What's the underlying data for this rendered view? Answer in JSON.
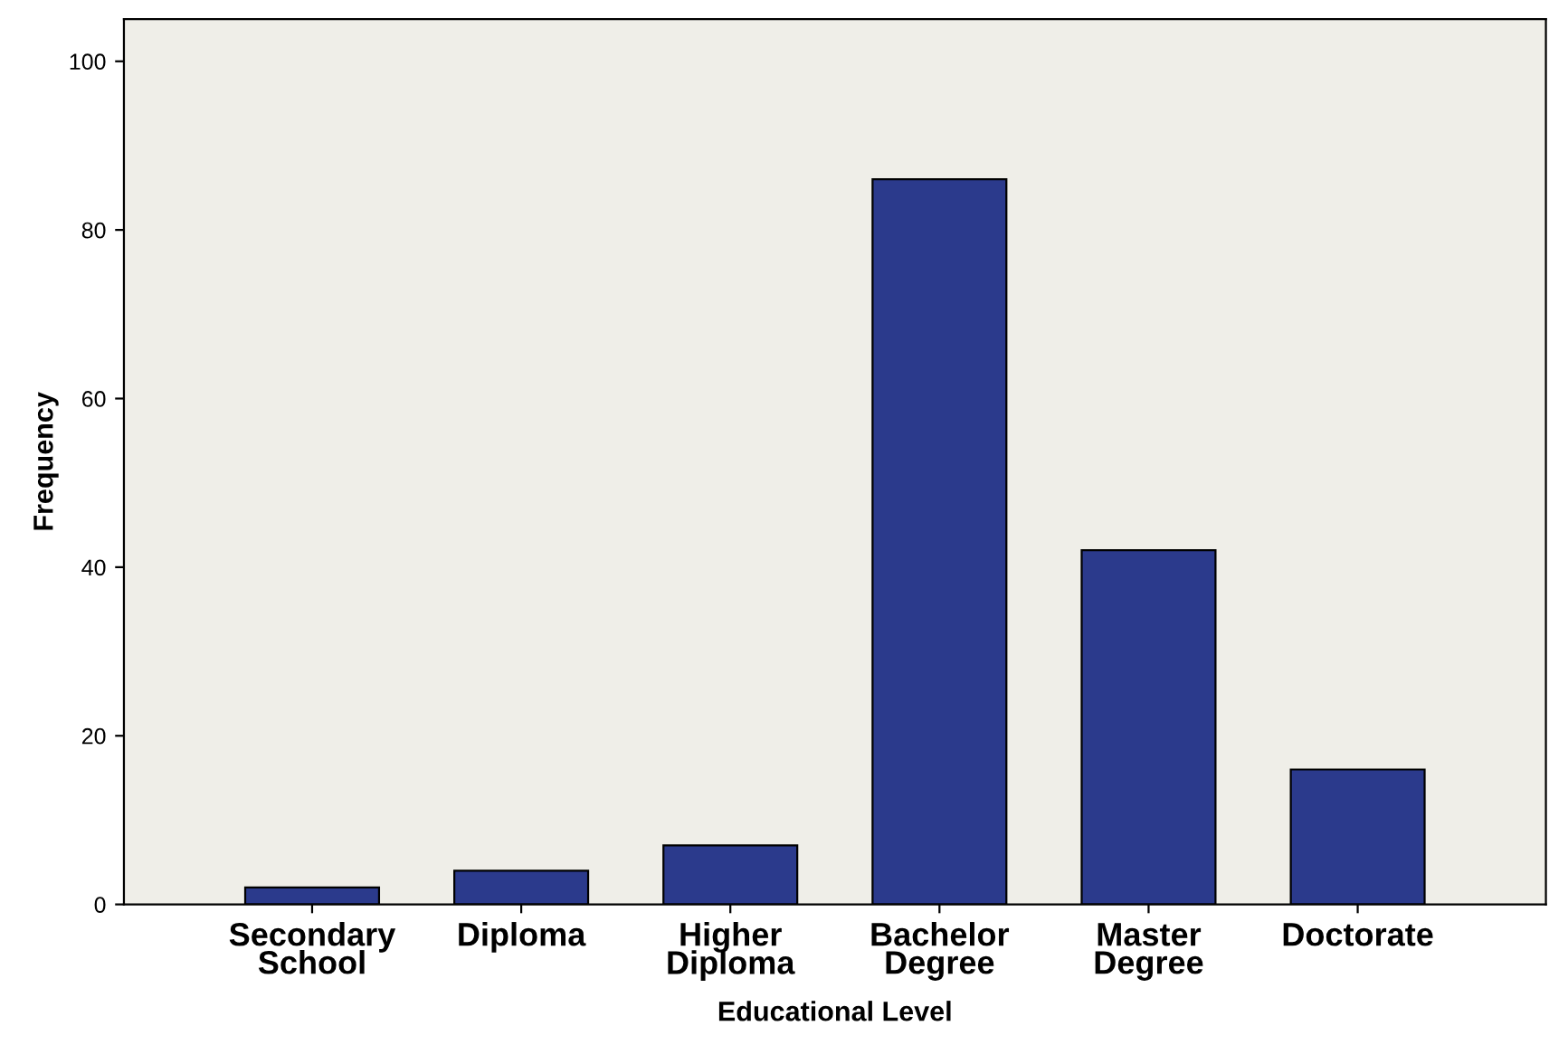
{
  "chart_data": {
    "type": "bar",
    "xlabel": "Educational Level",
    "ylabel": "Frequency",
    "categories": [
      "Secondary\nSchool",
      "Diploma",
      "Higher\nDiploma",
      "Bachelor\nDegree",
      "Master\nDegree",
      "Doctorate"
    ],
    "values": [
      2,
      4,
      7,
      86,
      42,
      16
    ],
    "color": "#2b3a8c",
    "ylim": [
      0,
      105
    ],
    "yticks": [
      0,
      20,
      40,
      60,
      80,
      100
    ],
    "grid": false
  }
}
